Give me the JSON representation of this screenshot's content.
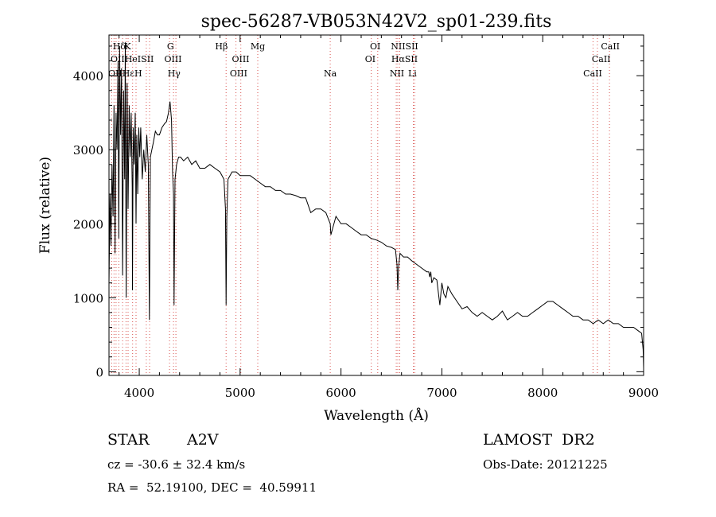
{
  "chart_data": {
    "type": "line",
    "title": "spec-56287-VB053N42V2_sp01-239.fits",
    "xlabel": "Wavelength (Å)",
    "ylabel": "Flux (relative)",
    "xlim": [
      3700,
      9000
    ],
    "ylim": [
      -50,
      4550
    ],
    "xticks": [
      4000,
      5000,
      6000,
      7000,
      8000,
      9000
    ],
    "yticks": [
      0,
      1000,
      2000,
      3000,
      4000
    ],
    "series": [
      {
        "x": [
          3700,
          3710,
          3720,
          3730,
          3740,
          3750,
          3760,
          3770,
          3780,
          3790,
          3797,
          3805,
          3815,
          3825,
          3835,
          3845,
          3855,
          3862,
          3870,
          3880,
          3889,
          3900,
          3910,
          3920,
          3930,
          3933,
          3940,
          3950,
          3960,
          3968,
          3975,
          3985,
          3995,
          4005,
          4015,
          4030,
          4045,
          4060,
          4075,
          4090,
          4101,
          4110,
          4125,
          4140,
          4160,
          4180,
          4200,
          4225,
          4250,
          4270,
          4290,
          4305,
          4320,
          4330,
          4340,
          4345,
          4355,
          4370,
          4390,
          4410,
          4440,
          4480,
          4520,
          4560,
          4600,
          4650,
          4700,
          4750,
          4800,
          4840,
          4855,
          4861,
          4868,
          4880,
          4920,
          4960,
          5000,
          5050,
          5100,
          5150,
          5200,
          5250,
          5300,
          5350,
          5400,
          5450,
          5500,
          5550,
          5600,
          5650,
          5700,
          5750,
          5800,
          5850,
          5893,
          5900,
          5950,
          6000,
          6050,
          6100,
          6150,
          6200,
          6250,
          6300,
          6350,
          6400,
          6450,
          6500,
          6540,
          6555,
          6563,
          6570,
          6585,
          6620,
          6660,
          6700,
          6750,
          6800,
          6850,
          6870,
          6880,
          6890,
          6900,
          6920,
          6950,
          6980,
          7000,
          7020,
          7040,
          7060,
          7100,
          7150,
          7200,
          7250,
          7300,
          7350,
          7400,
          7450,
          7500,
          7550,
          7600,
          7650,
          7700,
          7750,
          7800,
          7850,
          7900,
          7950,
          8000,
          8050,
          8100,
          8150,
          8200,
          8250,
          8300,
          8350,
          8400,
          8450,
          8500,
          8550,
          8600,
          8650,
          8700,
          8750,
          8800,
          8850,
          8900,
          8950,
          8980,
          8995,
          9000
        ],
        "y": [
          1200,
          2400,
          1700,
          2800,
          2100,
          3600,
          1600,
          3500,
          3000,
          4200,
          1800,
          4400,
          3200,
          4100,
          1300,
          3800,
          2600,
          4450,
          1000,
          3900,
          2200,
          3600,
          2900,
          3500,
          2500,
          1100,
          3300,
          2800,
          3500,
          2000,
          3200,
          2400,
          3300,
          2900,
          3300,
          2600,
          3000,
          2700,
          3200,
          2800,
          700,
          2900,
          3000,
          3100,
          3250,
          3200,
          3200,
          3300,
          3350,
          3380,
          3500,
          3650,
          3400,
          2700,
          2400,
          900,
          2600,
          2800,
          2900,
          2900,
          2850,
          2900,
          2800,
          2850,
          2750,
          2750,
          2800,
          2750,
          2700,
          2600,
          2200,
          900,
          2100,
          2600,
          2700,
          2700,
          2650,
          2650,
          2650,
          2600,
          2550,
          2500,
          2500,
          2450,
          2450,
          2400,
          2400,
          2380,
          2350,
          2350,
          2150,
          2200,
          2200,
          2150,
          2000,
          1850,
          2100,
          2000,
          2000,
          1950,
          1900,
          1850,
          1850,
          1800,
          1780,
          1750,
          1700,
          1680,
          1650,
          1450,
          1100,
          1400,
          1600,
          1550,
          1550,
          1500,
          1450,
          1400,
          1350,
          1350,
          1280,
          1350,
          1200,
          1270,
          1240,
          900,
          1200,
          1050,
          1000,
          1150,
          1050,
          950,
          850,
          880,
          800,
          750,
          800,
          750,
          700,
          750,
          820,
          700,
          750,
          800,
          750,
          750,
          800,
          850,
          900,
          950,
          950,
          900,
          850,
          800,
          750,
          750,
          700,
          700,
          650,
          700,
          650,
          700,
          650,
          650,
          600,
          600,
          600,
          550,
          520,
          300,
          50
        ]
      }
    ],
    "line_labels": [
      {
        "text": "Hδ",
        "wl": 3801,
        "row": 1
      },
      {
        "text": "K",
        "wl": 3885,
        "row": 1
      },
      {
        "text": "G",
        "wl": 4310,
        "row": 1
      },
      {
        "text": "Hβ",
        "wl": 4815,
        "row": 1
      },
      {
        "text": "Mg",
        "wl": 5175,
        "row": 1
      },
      {
        "text": "OI",
        "wl": 6340,
        "row": 1
      },
      {
        "text": "NIISII",
        "wl": 6630,
        "row": 1
      },
      {
        "text": "CaII",
        "wl": 8670,
        "row": 1
      },
      {
        "text": "OIIHeISII",
        "wl": 3930,
        "row": 2
      },
      {
        "text": "OIII",
        "wl": 4335,
        "row": 2
      },
      {
        "text": "OIII",
        "wl": 5005,
        "row": 2
      },
      {
        "text": "OI",
        "wl": 6290,
        "row": 2
      },
      {
        "text": "HαSII",
        "wl": 6630,
        "row": 2
      },
      {
        "text": "CaII",
        "wl": 8580,
        "row": 2
      },
      {
        "text": "OIIHεH",
        "wl": 3860,
        "row": 3
      },
      {
        "text": "Hγ",
        "wl": 4345,
        "row": 3
      },
      {
        "text": "OIII",
        "wl": 4985,
        "row": 3
      },
      {
        "text": "Na",
        "wl": 5893,
        "row": 3
      },
      {
        "text": "NII",
        "wl": 6555,
        "row": 3
      },
      {
        "text": "Li",
        "wl": 6708,
        "row": 3
      },
      {
        "text": "CaII",
        "wl": 8495,
        "row": 3
      }
    ],
    "marker_lines": [
      3727,
      3750,
      3770,
      3797,
      3835,
      3869,
      3889,
      3934,
      3968,
      4070,
      4102,
      4300,
      4340,
      4363,
      4861,
      4959,
      5007,
      5175,
      5893,
      6300,
      6364,
      6548,
      6563,
      6583,
      6717,
      6731,
      8498,
      8542,
      8662
    ]
  },
  "info": {
    "object_type": "STAR",
    "subclass": "A2V",
    "survey": "LAMOST  DR2",
    "cz": "cz = -30.6 ± 32.4 km/s",
    "obs_date": "Obs-Date: 20121225",
    "coords": "RA =  52.19100, DEC =  40.59911"
  }
}
